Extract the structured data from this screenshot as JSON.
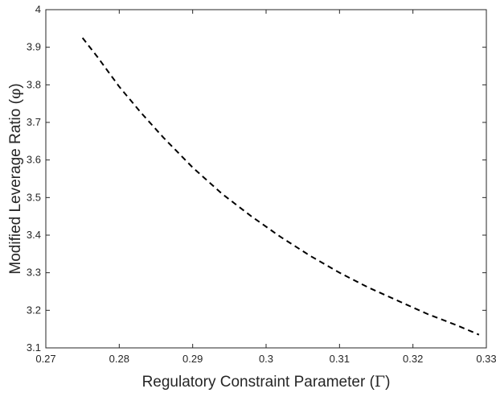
{
  "chart_data": {
    "type": "line",
    "title": "",
    "xlabel_text": "Regulatory Constraint Parameter (",
    "xlabel_symbol": "Γ",
    "xlabel_close": ")",
    "ylabel_text": "Modified Leverage Ratio (",
    "ylabel_symbol": "φ",
    "ylabel_close": ")",
    "xlim": [
      0.27,
      0.33
    ],
    "ylim": [
      3.1,
      4.0
    ],
    "x_ticks": [
      0.27,
      0.28,
      0.29,
      0.3,
      0.31,
      0.32,
      0.33
    ],
    "x_tick_labels": [
      "0.27",
      "0.28",
      "0.29",
      "0.3",
      "0.31",
      "0.32",
      "0.33"
    ],
    "y_ticks": [
      3.1,
      3.2,
      3.3,
      3.4,
      3.5,
      3.6,
      3.7,
      3.8,
      3.9,
      4.0
    ],
    "y_tick_labels": [
      "3.1",
      "3.2",
      "3.3",
      "3.4",
      "3.5",
      "3.6",
      "3.7",
      "3.8",
      "3.9",
      "4"
    ],
    "grid": false,
    "legend": "none",
    "series": [
      {
        "line_style": "dashed",
        "color": "#000000",
        "x": [
          0.275,
          0.277,
          0.28,
          0.283,
          0.286,
          0.29,
          0.294,
          0.298,
          0.302,
          0.306,
          0.31,
          0.314,
          0.318,
          0.322,
          0.326,
          0.329
        ],
        "y": [
          3.925,
          3.875,
          3.795,
          3.725,
          3.66,
          3.58,
          3.51,
          3.45,
          3.395,
          3.345,
          3.3,
          3.26,
          3.225,
          3.19,
          3.16,
          3.135
        ]
      }
    ]
  }
}
